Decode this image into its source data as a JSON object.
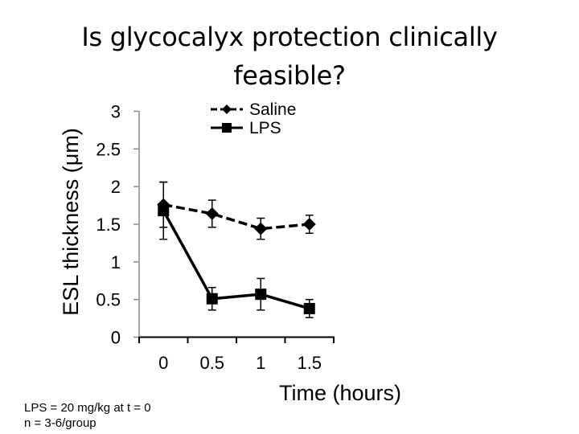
{
  "slide": {
    "title_line1": "Is glycocalyx protection clinically",
    "title_line2": "feasible?",
    "footnote_line1": "LPS = 20 mg/kg at t = 0",
    "footnote_line2": "n = 3-6/group"
  },
  "chart_data": {
    "type": "line",
    "title": "",
    "xlabel": "Time (hours)",
    "ylabel": "ESL thickness (μm)",
    "categories": [
      "0",
      "0.5",
      "1",
      "1.5"
    ],
    "ylim": [
      0,
      3
    ],
    "yticks": [
      "0",
      "0.5",
      "1",
      "1.5",
      "2",
      "2.5",
      "3"
    ],
    "grid": false,
    "legend_position": "top-right (inside plot)",
    "series": [
      {
        "name": "Saline",
        "line_style": "dashed",
        "marker": "diamond",
        "color": "#000000",
        "values": [
          1.76,
          1.64,
          1.44,
          1.5
        ],
        "error": [
          0.3,
          0.18,
          0.14,
          0.12
        ]
      },
      {
        "name": "LPS",
        "line_style": "solid",
        "marker": "square",
        "color": "#000000",
        "values": [
          1.68,
          0.51,
          0.57,
          0.38
        ],
        "error": [
          0.38,
          0.15,
          0.21,
          0.12
        ]
      }
    ]
  }
}
